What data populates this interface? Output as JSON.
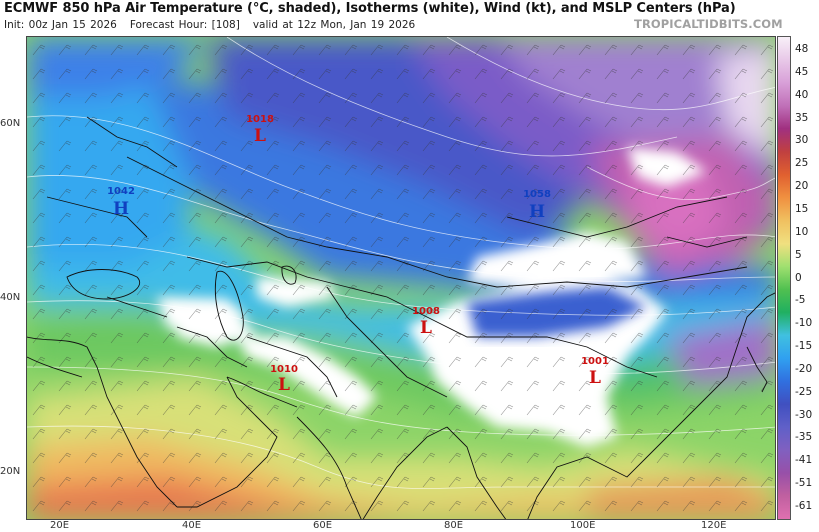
{
  "header": {
    "title": "ECMWF 850 hPa Air Temperature (°C, shaded), Isotherms (white), Wind (kt), and MSLP Centers (hPa)",
    "init": "Init: 00z Jan 15 2026",
    "forecast_hour": "Forecast Hour: [108]",
    "valid": "valid at 12z Mon, Jan 19 2026",
    "brand": "TROPICALTIDBITS.COM"
  },
  "axes": {
    "lat_labels": [
      "60N",
      "40N",
      "20N"
    ],
    "lon_labels": [
      "20E",
      "40E",
      "60E",
      "80E",
      "100E",
      "120E"
    ]
  },
  "colorbar": {
    "labels": [
      "48",
      "45",
      "40",
      "35",
      "30",
      "25",
      "20",
      "15",
      "10",
      "5",
      "0",
      "-5",
      "-10",
      "-15",
      "-20",
      "-25",
      "-30",
      "-35",
      "-41",
      "-51",
      "-61"
    ],
    "colors": [
      "#f8f0f8",
      "#e8c8e8",
      "#d8a0d8",
      "#c070b8",
      "#a03080",
      "#c04040",
      "#e06030",
      "#f09040",
      "#f0c060",
      "#f0e080",
      "#a0e070",
      "#50c050",
      "#20b060",
      "#40c0e0",
      "#30a0f0",
      "#3070e0",
      "#4050c0",
      "#6060c8",
      "#8060c0",
      "#9850a8",
      "#c060a0",
      "#e070b0"
    ]
  },
  "pressure_centers": [
    {
      "type": "L",
      "value": "1018",
      "color": "#cc1010"
    },
    {
      "type": "H",
      "value": "1042",
      "color": "#1040c0"
    },
    {
      "type": "H",
      "value": "1058",
      "color": "#1040c0"
    },
    {
      "type": "L",
      "value": "1008",
      "color": "#cc1010"
    },
    {
      "type": "L",
      "value": "1010",
      "color": "#cc1010"
    },
    {
      "type": "L",
      "value": "1001",
      "color": "#cc1010"
    }
  ]
}
